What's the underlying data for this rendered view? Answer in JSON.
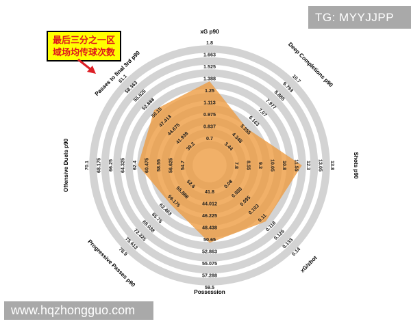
{
  "watermarks": {
    "top_right": "TG: MYYJJPP",
    "bottom_left": "www.hqzhongguo.com"
  },
  "annotation": {
    "line1": "最后三分之一区",
    "line2": "域场均传球次数"
  },
  "colors": {
    "ring": "#d3d3d3",
    "polygon": "#ee9c42",
    "tick_text": "#1a1a1a",
    "annotation_bg": "#ffff00",
    "annotation_text": "#e0161c",
    "arrow": "#dd1f26",
    "watermark_bg": "#a9a9a9",
    "watermark_text": "#ffffff"
  },
  "chart_data": {
    "type": "radar",
    "title": "",
    "legend_position": "none",
    "grid": "concentric-rings",
    "axes": [
      {
        "label": "xG p90",
        "angle": 0,
        "ticks": [
          "0.7",
          "0.837",
          "0.975",
          "1.113",
          "1.25",
          "1.388",
          "1.525",
          "1.663",
          "1.8"
        ],
        "value": 1.36
      },
      {
        "label": "Deep Completions p90",
        "angle": 45,
        "ticks": [
          "3.44",
          "4.348",
          "5.255",
          "6.163",
          "7.07",
          "7.977",
          "8.885",
          "9.793",
          "10.7"
        ],
        "value": 5.4
      },
      {
        "label": "Shots p90",
        "angle": 90,
        "ticks": [
          "7.8",
          "8.55",
          "9.3",
          "10.05",
          "10.8",
          "11.55",
          "12.3",
          "13.05",
          "13.8"
        ],
        "value": 11.9
      },
      {
        "label": "xG/shot",
        "angle": 135,
        "ticks": [
          "0.08",
          "0.088",
          "0.095",
          "0.103",
          "0.11",
          "0.118",
          "0.125",
          "0.133",
          "0.14"
        ],
        "value": 0.113
      },
      {
        "label": "Possession",
        "angle": 180,
        "ticks": [
          "41.8",
          "44.012",
          "46.225",
          "48.438",
          "50.65",
          "52.863",
          "55.075",
          "57.288",
          "59.5"
        ],
        "value": 51.2
      },
      {
        "label": "Progressive Passes p90",
        "angle": 225,
        "ticks": [
          "52.6",
          "55.888",
          "59.175",
          "62.463",
          "65.75",
          "69.038",
          "72.325",
          "75.613",
          "78.9"
        ],
        "value": 60.4
      },
      {
        "label": "Offensive Duels p90",
        "angle": 270,
        "ticks": [
          "54.7",
          "56.625",
          "58.55",
          "60.475",
          "62.4",
          "64.325",
          "66.25",
          "68.175",
          "70.1"
        ],
        "value": 61.9
      },
      {
        "label": "Passes to final 3rd p90",
        "angle": 315,
        "ticks": [
          "39.2",
          "41.938",
          "44.675",
          "47.413",
          "50.15",
          "52.888",
          "55.625",
          "58.363",
          "61.1"
        ],
        "value": 51.0
      }
    ]
  }
}
